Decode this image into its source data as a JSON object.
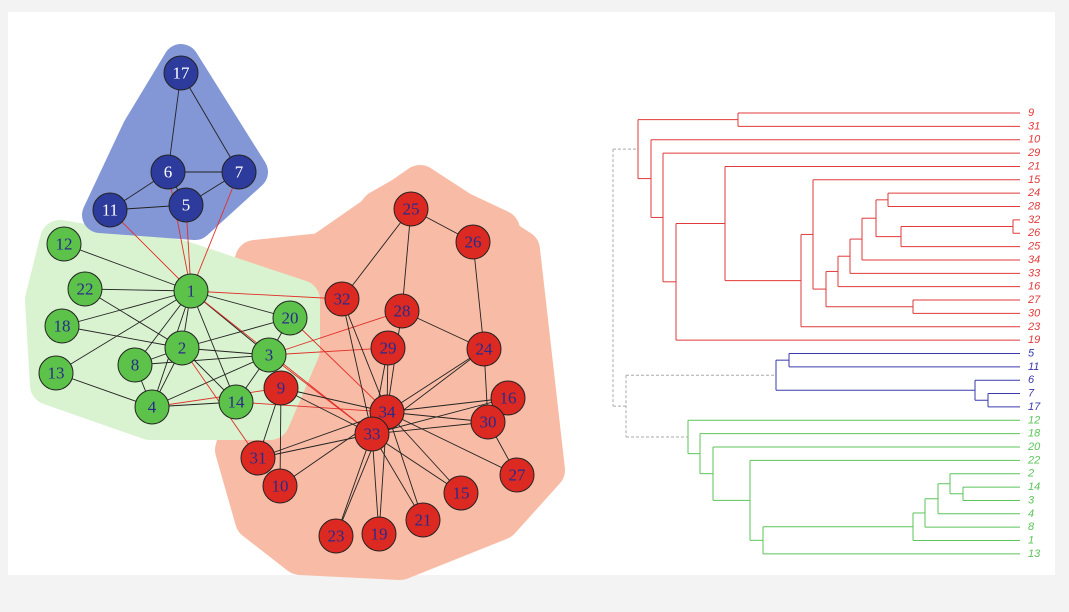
{
  "network": {
    "nodes": [
      "17",
      "6",
      "7",
      "5",
      "11",
      "12",
      "22",
      "1",
      "18",
      "20",
      "2",
      "8",
      "3",
      "13",
      "4",
      "14",
      "9",
      "34",
      "33",
      "31",
      "10",
      "16",
      "30",
      "27",
      "15",
      "21",
      "19",
      "23",
      "25",
      "26",
      "32",
      "28",
      "29",
      "24"
    ]
  },
  "dendrogram": {
    "leaves": [
      "9",
      "31",
      "10",
      "29",
      "21",
      "15",
      "24",
      "28",
      "32",
      "26",
      "25",
      "34",
      "33",
      "16",
      "27",
      "30",
      "23",
      "19",
      "5",
      "11",
      "6",
      "7",
      "17",
      "12",
      "18",
      "20",
      "22",
      "2",
      "14",
      "3",
      "4",
      "8",
      "1",
      "13"
    ]
  }
}
